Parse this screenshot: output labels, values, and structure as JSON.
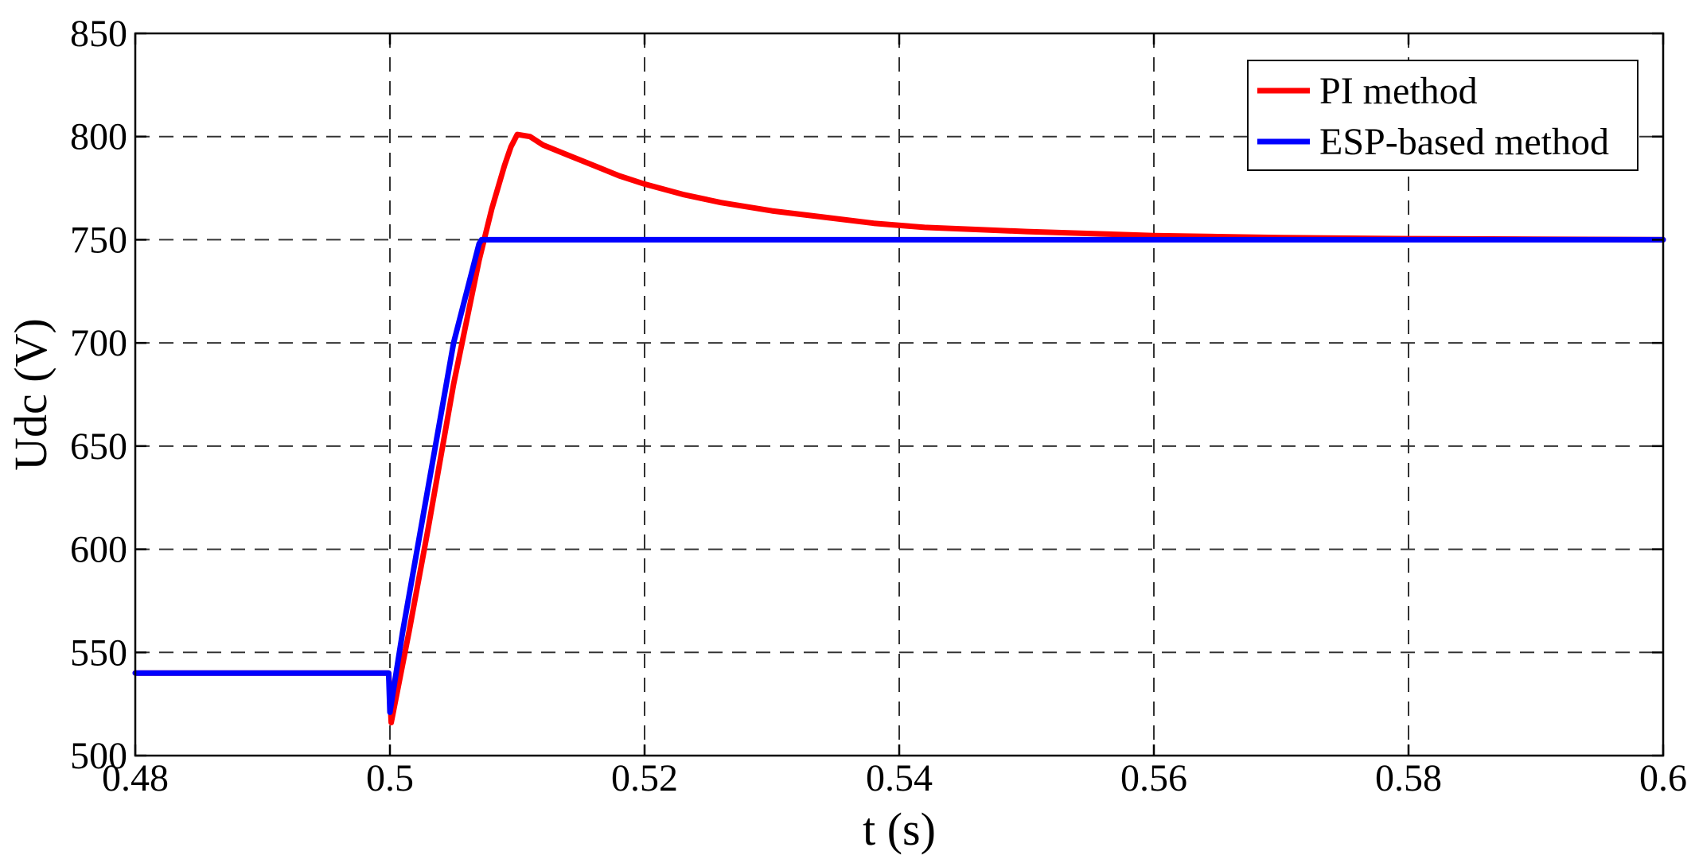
{
  "chart_data": {
    "type": "line",
    "title": "",
    "xlabel": "t (s)",
    "ylabel": "Udc (V)",
    "xlim": [
      0.48,
      0.6
    ],
    "ylim": [
      500,
      850
    ],
    "xticks": [
      0.48,
      0.5,
      0.52,
      0.54,
      0.56,
      0.58,
      0.6
    ],
    "xtick_labels": [
      "0.48",
      "0.5",
      "0.52",
      "0.54",
      "0.56",
      "0.58",
      "0.6"
    ],
    "yticks": [
      500,
      550,
      600,
      650,
      700,
      750,
      800,
      850
    ],
    "ytick_labels": [
      "500",
      "550",
      "600",
      "650",
      "700",
      "750",
      "800",
      "850"
    ],
    "grid": true,
    "grid_style": "dashed",
    "legend_position": "top-right",
    "series": [
      {
        "name": "PI method",
        "color": "#ff0000",
        "x": [
          0.48,
          0.4999,
          0.5,
          0.5001,
          0.5015,
          0.503,
          0.505,
          0.507,
          0.508,
          0.509,
          0.5095,
          0.51,
          0.511,
          0.512,
          0.514,
          0.516,
          0.518,
          0.52,
          0.523,
          0.526,
          0.53,
          0.534,
          0.538,
          0.542,
          0.546,
          0.55,
          0.555,
          0.56,
          0.565,
          0.57,
          0.58,
          0.59,
          0.6
        ],
        "y": [
          540,
          540,
          530,
          516,
          560,
          610,
          680,
          740,
          765,
          786,
          795,
          801,
          800,
          796,
          791,
          786,
          781,
          777,
          772,
          768,
          764,
          761,
          758,
          756,
          755,
          754,
          753,
          752,
          751.5,
          751,
          750.5,
          750.3,
          750
        ]
      },
      {
        "name": "ESP-based method",
        "color": "#0000ff",
        "x": [
          0.48,
          0.4999,
          0.5,
          0.5001,
          0.501,
          0.503,
          0.505,
          0.507,
          0.5072,
          0.52,
          0.54,
          0.56,
          0.58,
          0.6
        ],
        "y": [
          540,
          540,
          521,
          525,
          560,
          630,
          700,
          748,
          750,
          750,
          750,
          750,
          750,
          750
        ]
      }
    ]
  }
}
